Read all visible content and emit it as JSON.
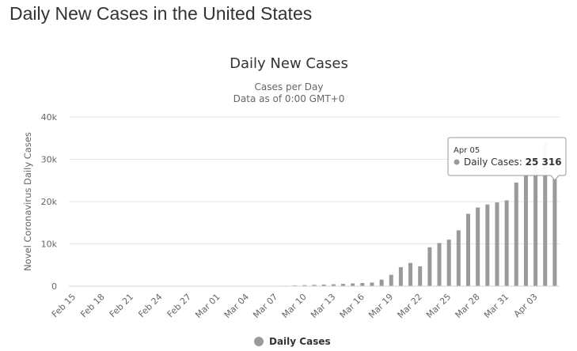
{
  "page": {
    "heading": "Daily New Cases in the United States"
  },
  "colors": {
    "bar": "#9a9a9a",
    "grid": "#e6e6e6",
    "axis": "#ccd6eb",
    "tooltip_border": "#9a9a9a"
  },
  "chart_data": {
    "type": "bar",
    "title": "Daily New Cases",
    "subtitle_lines": [
      "Cases per Day",
      "Data as of 0:00 GMT+0"
    ],
    "ylabel": "Novel Coronavirus Daily Cases",
    "xlabel": "",
    "ylim": [
      0,
      40000
    ],
    "y_ticks": [
      0,
      10000,
      20000,
      30000,
      40000
    ],
    "y_tick_labels": [
      "0",
      "10k",
      "20k",
      "30k",
      "40k"
    ],
    "grid": true,
    "legend_position": "bottom-center",
    "x_tick_labels": [
      "Feb 15",
      "Feb 18",
      "Feb 21",
      "Feb 24",
      "Feb 27",
      "Mar 01",
      "Mar 04",
      "Mar 07",
      "Mar 10",
      "Mar 13",
      "Mar 16",
      "Mar 19",
      "Mar 22",
      "Mar 25",
      "Mar 28",
      "Mar 31",
      "Apr 03"
    ],
    "categories": [
      "Feb 15",
      "Feb 16",
      "Feb 17",
      "Feb 18",
      "Feb 19",
      "Feb 20",
      "Feb 21",
      "Feb 22",
      "Feb 23",
      "Feb 24",
      "Feb 25",
      "Feb 26",
      "Feb 27",
      "Feb 28",
      "Feb 29",
      "Mar 01",
      "Mar 02",
      "Mar 03",
      "Mar 04",
      "Mar 05",
      "Mar 06",
      "Mar 07",
      "Mar 08",
      "Mar 09",
      "Mar 10",
      "Mar 11",
      "Mar 12",
      "Mar 13",
      "Mar 14",
      "Mar 15",
      "Mar 16",
      "Mar 17",
      "Mar 18",
      "Mar 19",
      "Mar 20",
      "Mar 21",
      "Mar 22",
      "Mar 23",
      "Mar 24",
      "Mar 25",
      "Mar 26",
      "Mar 27",
      "Mar 28",
      "Mar 29",
      "Mar 30",
      "Mar 31",
      "Apr 01",
      "Apr 02",
      "Apr 03",
      "Apr 04",
      "Apr 05"
    ],
    "series": [
      {
        "name": "Daily Cases",
        "values": [
          0,
          0,
          0,
          0,
          0,
          0,
          0,
          0,
          0,
          0,
          0,
          0,
          0,
          0,
          0,
          0,
          5,
          10,
          20,
          30,
          50,
          70,
          120,
          180,
          250,
          320,
          380,
          450,
          550,
          650,
          750,
          850,
          1550,
          2700,
          4500,
          5500,
          4700,
          9200,
          10200,
          11000,
          13200,
          17100,
          18600,
          19300,
          19800,
          20300,
          24500,
          26300,
          29000,
          33800,
          25316
        ]
      }
    ],
    "tooltip": {
      "date": "Apr 05",
      "series_label": "Daily Cases:",
      "value": "25 316"
    },
    "legend": [
      {
        "label": "Daily Cases"
      }
    ]
  }
}
